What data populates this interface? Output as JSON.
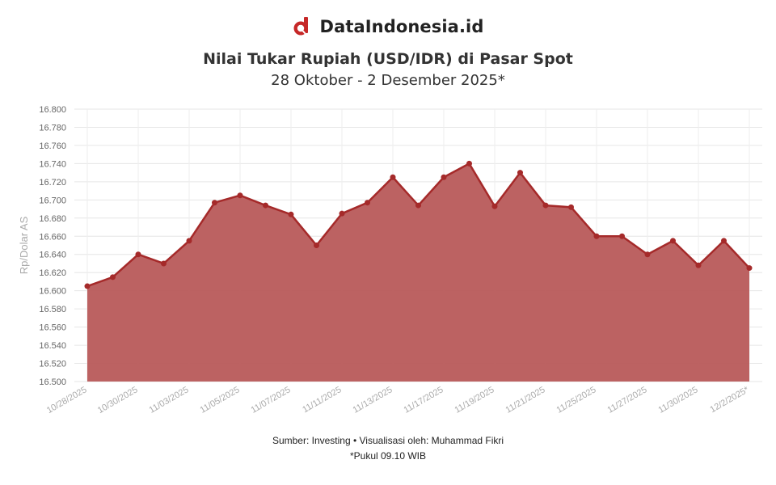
{
  "brand": {
    "name": "DataIndonesia.id",
    "logo_icon": "dataindonesia-logo-icon",
    "logo_color": "#c62828"
  },
  "chart_data": {
    "type": "area",
    "title": "Nilai Tukar Rupiah (USD/IDR) di Pasar Spot",
    "subtitle": "28 Oktober - 2 Desember 2025*",
    "xlabel": "",
    "ylabel": "Rp/Dolar AS",
    "ylim": [
      16500,
      16800
    ],
    "yticks": [
      "16.500",
      "16.520",
      "16.540",
      "16.560",
      "16.580",
      "16.600",
      "16.620",
      "16.640",
      "16.660",
      "16.680",
      "16.700",
      "16.720",
      "16.740",
      "16.760",
      "16.780",
      "16.800"
    ],
    "xtick_labels": [
      "10/28/2025",
      "10/30/2025",
      "11/03/2025",
      "11/05/2025",
      "11/07/2025",
      "11/11/2025",
      "11/13/2025",
      "11/17/2025",
      "11/19/2025",
      "11/21/2025",
      "11/25/2025",
      "11/27/2025",
      "11/30/2025",
      "12/2/2025*"
    ],
    "grid": true,
    "legend": "none",
    "series": [
      {
        "color": "#a52a2a",
        "fill": "#b85a5a",
        "values": [
          16605,
          16615,
          16640,
          16630,
          16655,
          16697,
          16705,
          16694,
          16684,
          16650,
          16685,
          16697,
          16725,
          16694,
          16725,
          16740,
          16693,
          16730,
          16694,
          16692,
          16660,
          16660,
          16640,
          16655,
          16628,
          16655,
          16625
        ]
      }
    ]
  },
  "footer": {
    "source": "Sumber: Investing • Visualisasi oleh: Muhammad Fikri",
    "note": "*Pukul 09.10 WIB"
  }
}
